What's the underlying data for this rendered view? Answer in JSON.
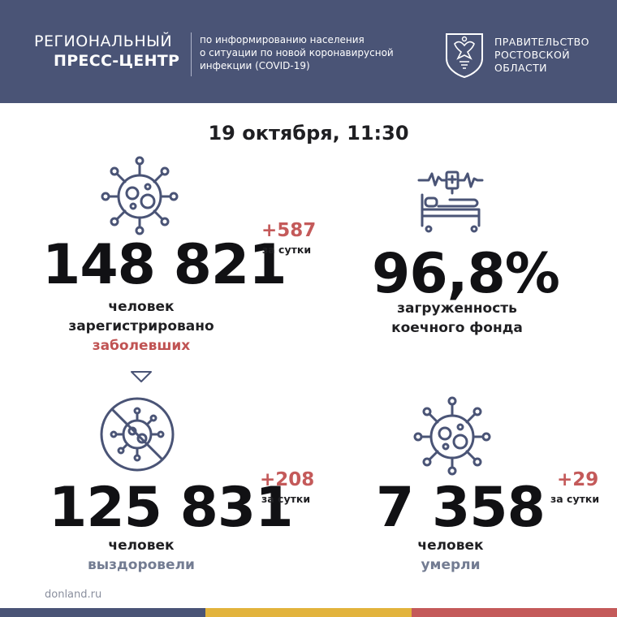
{
  "header": {
    "brand_line1": "РЕГИОНАЛЬНЫЙ",
    "brand_line2": "ПРЕСС-ЦЕНТР",
    "description_lines": [
      "по информированию населения",
      "о ситуации по новой коронавирусной",
      "инфекции (COVID-19)"
    ],
    "government_lines": [
      "ПРАВИТЕЛЬСТВО",
      "РОСТОВСКОЙ",
      "ОБЛАСТИ"
    ],
    "emblem_icon": "coat-of-arms-icon"
  },
  "date": "19 октября, 11:30",
  "stats": {
    "infected": {
      "value": "148 821",
      "delta": "+587",
      "delta_caption": "за сутки",
      "label_lines": [
        "человек",
        "зарегистрировано"
      ],
      "label_highlight": "заболевших",
      "icon": "virus-icon"
    },
    "beds": {
      "value": "96,8%",
      "label_lines": [
        "загруженность",
        "коечного фонда"
      ],
      "icon": "hospital-bed-icon"
    },
    "recovered": {
      "value": "125 831",
      "delta": "+208",
      "delta_caption": "за сутки",
      "label_line": "человек",
      "label_highlight": "выздоровели",
      "icon": "crossed-virus-icon"
    },
    "deaths": {
      "value": "7 358",
      "delta": "+29",
      "delta_caption": "за сутки",
      "label_line": "человек",
      "label_highlight": "умерли",
      "icon": "virus-icon"
    }
  },
  "footer": {
    "site": "donland.ru",
    "stripe_colors": [
      "#4a5476",
      "#e2b33c",
      "#c45a5a"
    ]
  },
  "colors": {
    "header_bg": "#4a5476",
    "accent_red": "#c45a5a",
    "accent_grey": "#737c92"
  }
}
